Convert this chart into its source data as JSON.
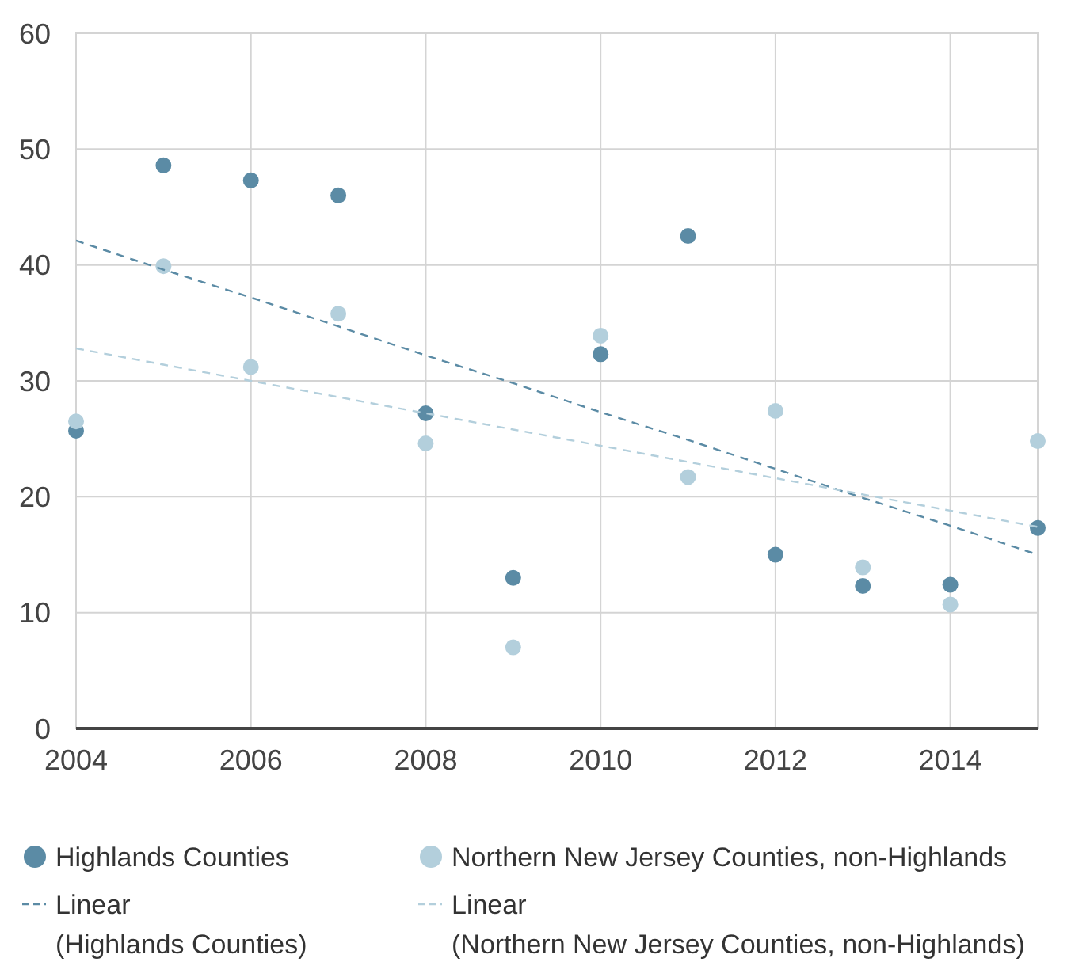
{
  "chart_data": {
    "type": "scatter",
    "x": [
      2004,
      2005,
      2006,
      2007,
      2008,
      2009,
      2010,
      2011,
      2012,
      2013,
      2014,
      2015
    ],
    "xlim": [
      2004,
      2015
    ],
    "xticks": [
      2004,
      2006,
      2008,
      2010,
      2012,
      2014
    ],
    "ylim": [
      0,
      60
    ],
    "yticks": [
      0,
      10,
      20,
      30,
      40,
      50,
      60
    ],
    "grid": true,
    "legend": "bottom",
    "marker": "circle",
    "series": [
      {
        "name": "Highlands Counties",
        "color": "#5b8ba5",
        "values": [
          25.7,
          48.6,
          47.3,
          46.0,
          27.2,
          13.0,
          32.3,
          42.5,
          15.0,
          12.3,
          12.4,
          17.3
        ]
      },
      {
        "name": "Northern New Jersey Counties, non-Highlands",
        "color": "#b3cfdc",
        "values": [
          26.5,
          39.9,
          31.2,
          35.8,
          24.6,
          7.0,
          33.9,
          21.7,
          27.4,
          13.9,
          10.7,
          24.8
        ]
      },
      {
        "name": "Linear\n(Highlands Counties)",
        "type": "line",
        "color": "#5b8ba5",
        "values": [
          42.1,
          39.6,
          37.2,
          34.7,
          32.2,
          29.8,
          27.3,
          24.9,
          22.4,
          19.9,
          17.5,
          15.0
        ],
        "line_style": "dashed",
        "marker": "none"
      },
      {
        "name": "Linear\n(Northern New Jersey Counties, non-Highlands)",
        "type": "line",
        "color": "#b3cfdc",
        "values": [
          32.8,
          31.4,
          30.0,
          28.6,
          27.2,
          25.8,
          24.4,
          23.0,
          21.6,
          20.2,
          18.8,
          17.4
        ],
        "line_style": "dashed",
        "marker": "none"
      }
    ]
  }
}
